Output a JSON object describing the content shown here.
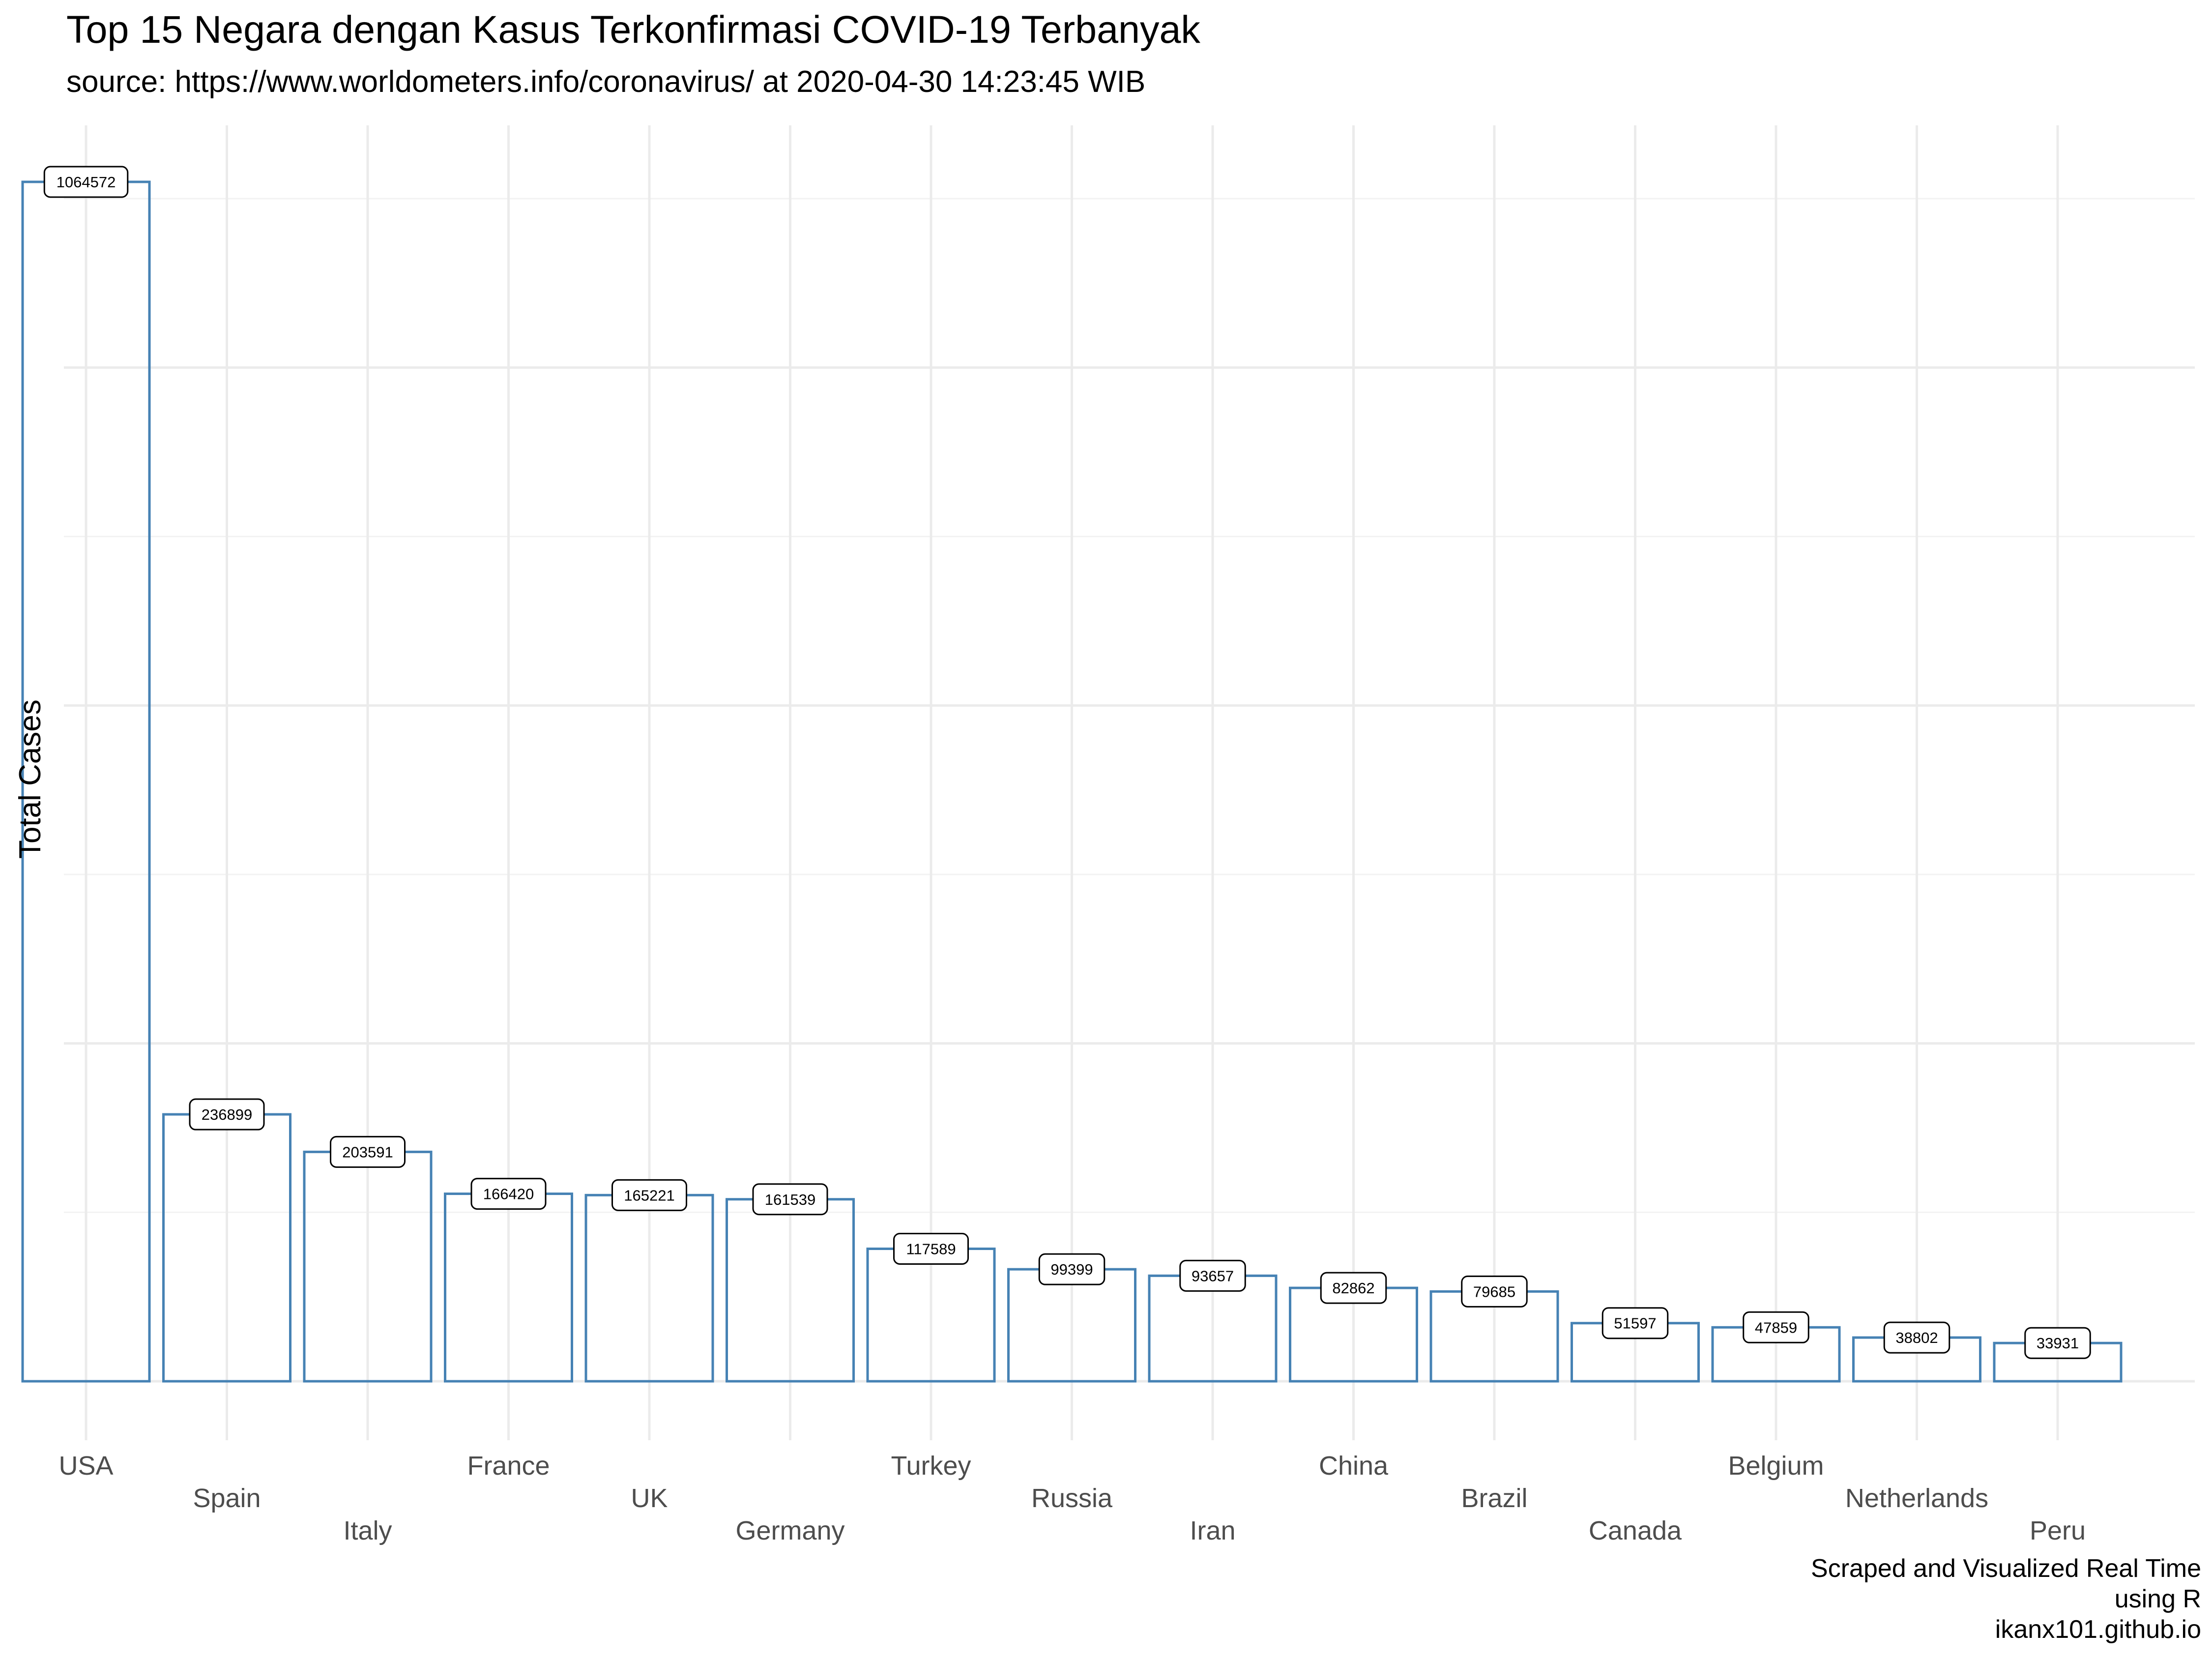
{
  "chart_data": {
    "type": "bar",
    "title": "Top 15 Negara dengan Kasus Terkonfirmasi COVID-19 Terbanyak",
    "subtitle": "source: https://www.worldometers.info/coronavirus/ at 2020-04-30 14:23:45 WIB",
    "xlabel": "",
    "ylabel": "Total Cases",
    "categories": [
      "USA",
      "Spain",
      "Italy",
      "France",
      "UK",
      "Germany",
      "Turkey",
      "Russia",
      "Iran",
      "China",
      "Brazil",
      "Canada",
      "Belgium",
      "Netherlands",
      "Peru"
    ],
    "values": [
      1064572,
      236899,
      203591,
      166420,
      165221,
      161539,
      117589,
      99399,
      93657,
      82862,
      79685,
      51597,
      47859,
      38802,
      33931
    ],
    "ylim": [
      0,
      1120000
    ],
    "y_tick_labels_shown": false,
    "grid": true,
    "legend": "none",
    "bar_style": "outline",
    "bar_color": "#4682B4",
    "caption_lines": [
      "Scraped and Visualized Real Time",
      "using R",
      "ikanx101.github.io"
    ]
  }
}
